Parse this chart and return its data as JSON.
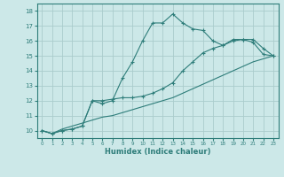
{
  "bg_color": "#cce8e8",
  "grid_color": "#aacccc",
  "line_color": "#2e7d7a",
  "xlabel": "Humidex (Indice chaleur)",
  "ylim": [
    9.5,
    18.5
  ],
  "xlim": [
    -0.5,
    23.5
  ],
  "yticks": [
    10,
    11,
    12,
    13,
    14,
    15,
    16,
    17,
    18
  ],
  "xticks": [
    0,
    1,
    2,
    3,
    4,
    5,
    6,
    7,
    8,
    9,
    10,
    11,
    12,
    13,
    14,
    15,
    16,
    17,
    18,
    19,
    20,
    21,
    22,
    23
  ],
  "line1_x": [
    0,
    1,
    2,
    3,
    4,
    5,
    6,
    7,
    8,
    9,
    10,
    11,
    12,
    13,
    14,
    15,
    16,
    17,
    18,
    19,
    20,
    21,
    22,
    23
  ],
  "line1_y": [
    10.0,
    9.8,
    10.0,
    10.1,
    10.3,
    12.0,
    11.8,
    12.0,
    13.5,
    14.6,
    16.0,
    17.2,
    17.2,
    17.8,
    17.2,
    16.8,
    16.7,
    16.0,
    15.7,
    16.1,
    16.1,
    15.9,
    15.1,
    15.0
  ],
  "line2_x": [
    0,
    1,
    2,
    3,
    4,
    5,
    6,
    7,
    8,
    9,
    10,
    11,
    12,
    13,
    14,
    15,
    16,
    17,
    18,
    19,
    20,
    21,
    22,
    23
  ],
  "line2_y": [
    10.0,
    9.8,
    10.0,
    10.1,
    10.3,
    12.0,
    12.0,
    12.1,
    12.2,
    12.2,
    12.3,
    12.5,
    12.8,
    13.2,
    14.0,
    14.6,
    15.2,
    15.5,
    15.7,
    16.0,
    16.1,
    16.1,
    15.5,
    15.0
  ],
  "line3_x": [
    0,
    1,
    2,
    3,
    4,
    5,
    6,
    7,
    8,
    9,
    10,
    11,
    12,
    13,
    14,
    15,
    16,
    17,
    18,
    19,
    20,
    21,
    22,
    23
  ],
  "line3_y": [
    10.0,
    9.8,
    10.1,
    10.3,
    10.5,
    10.7,
    10.9,
    11.0,
    11.2,
    11.4,
    11.6,
    11.8,
    12.0,
    12.2,
    12.5,
    12.8,
    13.1,
    13.4,
    13.7,
    14.0,
    14.3,
    14.6,
    14.8,
    15.0
  ]
}
